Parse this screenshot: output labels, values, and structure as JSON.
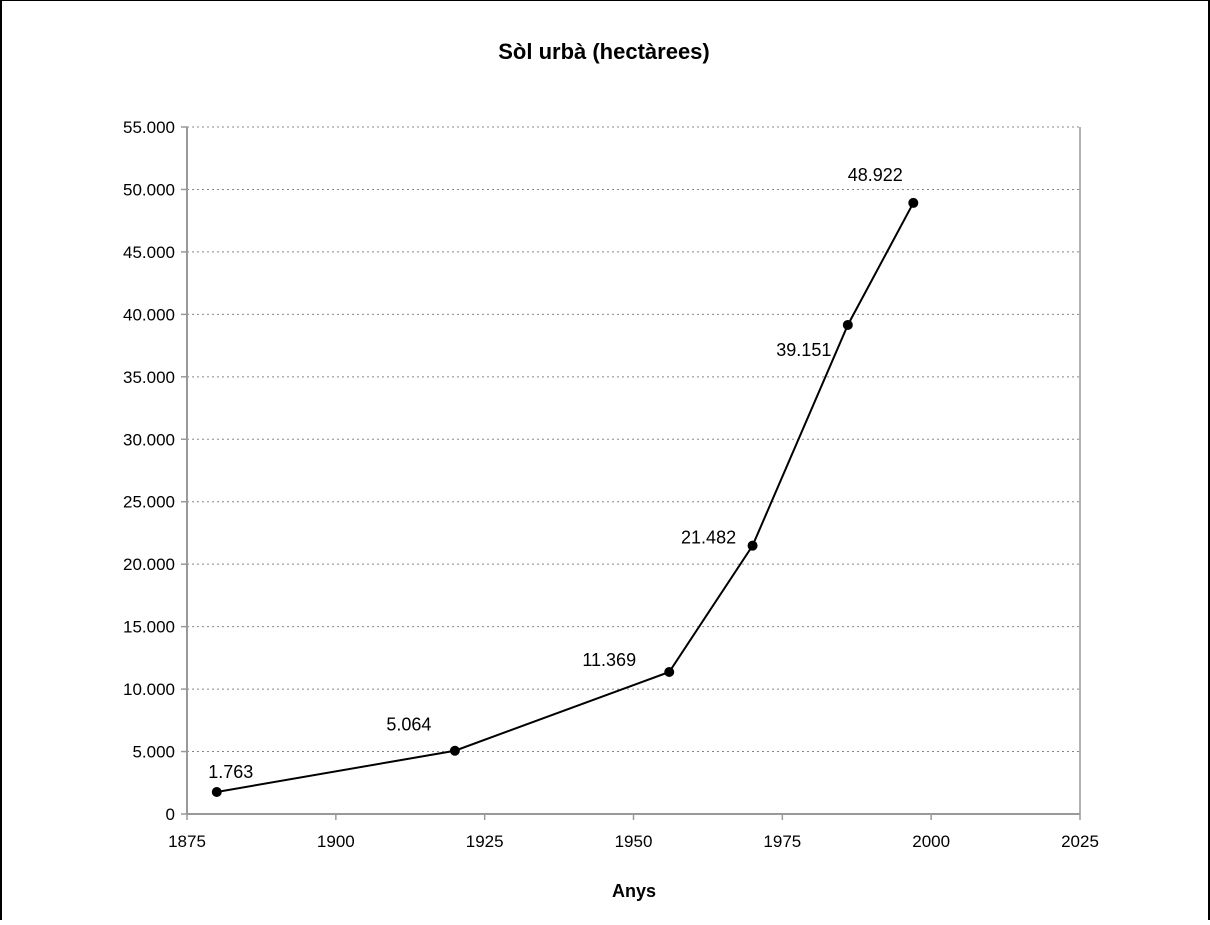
{
  "chart_data": {
    "type": "line",
    "title": "Sòl urbà (hectàrees)",
    "xlabel": "Anys",
    "ylabel": "",
    "xlim": [
      1875,
      2025
    ],
    "ylim": [
      0,
      55000
    ],
    "x_ticks": [
      1875,
      1900,
      1925,
      1950,
      1975,
      2000,
      2025
    ],
    "x_tick_labels": [
      "1875",
      "1900",
      "1925",
      "1950",
      "1975",
      "2000",
      "2025"
    ],
    "y_ticks": [
      0,
      5000,
      10000,
      15000,
      20000,
      25000,
      30000,
      35000,
      40000,
      45000,
      50000,
      55000
    ],
    "y_tick_labels": [
      "0",
      "5.000",
      "10.000",
      "15.000",
      "20.000",
      "25.000",
      "30.000",
      "35.000",
      "40.000",
      "45.000",
      "50.000",
      "55.000"
    ],
    "grid": "horizontal dotted",
    "legend": "none",
    "colors": {
      "line": "#000000",
      "grid": "#888888",
      "axis": "#999999"
    },
    "series": [
      {
        "x": [
          1880,
          1920,
          1956,
          1970,
          1986,
          1997
        ],
        "values": [
          1763,
          5064,
          11369,
          21482,
          39151,
          48922
        ],
        "labels": [
          "1.763",
          "5.064",
          "11.369",
          "21.482",
          "39.151",
          "48.922"
        ]
      }
    ]
  }
}
